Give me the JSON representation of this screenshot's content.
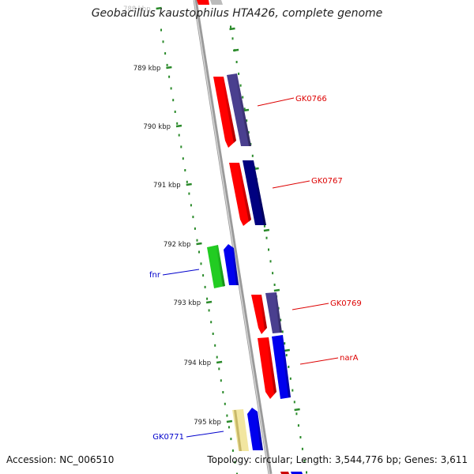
{
  "title": "Geobacillus kaustophilus HTA426, complete genome",
  "footer": {
    "accession": "Accession: NC_006510",
    "summary": "Topology: circular; Length: 3,544,776 bp; Genes: 3,611"
  },
  "ticks": [
    "788 kbp",
    "789 kbp",
    "790 kbp",
    "791 kbp",
    "792 kbp",
    "793 kbp",
    "794 kbp",
    "795 kbp"
  ],
  "genes": [
    {
      "label": "GK0766",
      "strand": "forward",
      "color": "#cc0000"
    },
    {
      "label": "GK0767",
      "strand": "forward",
      "color": "#cc0000"
    },
    {
      "label": "fnr",
      "strand": "reverse",
      "color": "#000099"
    },
    {
      "label": "GK0769",
      "strand": "forward",
      "color": "#cc0000"
    },
    {
      "label": "narA",
      "strand": "forward",
      "color": "#cc0000"
    },
    {
      "label": "GK0771",
      "strand": "reverse",
      "color": "#000099"
    }
  ],
  "colors": {
    "backbone": "#888888",
    "tick_dots": "#2a8a2a",
    "cds_red": "#ff0000",
    "gene_purple": "#4a3f8f",
    "gene_navy": "#000080",
    "gene_blue": "#0000ee",
    "gene_green": "#22cc22",
    "gene_yellow": "#f2e6a0"
  }
}
